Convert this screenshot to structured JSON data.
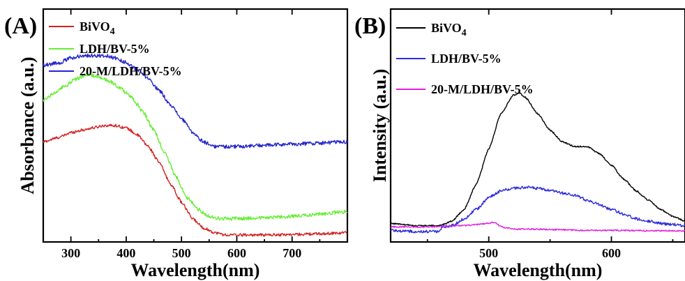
{
  "chart_data": [
    {
      "panel": "(A)",
      "type": "line",
      "xlabel": "Wavelength(nm)",
      "ylabel": "Absorbance (a.u.)",
      "xlim": [
        250,
        800
      ],
      "ylim": [
        0,
        1
      ],
      "xticks": [
        300,
        400,
        500,
        600,
        700
      ],
      "yticks_visible": false,
      "legend_position": "top-left",
      "series": [
        {
          "name": "BiVO",
          "name_sub": "4",
          "color": "#d42020",
          "noise": 0.006,
          "x": [
            250,
            280,
            300,
            320,
            340,
            360,
            380,
            400,
            420,
            440,
            460,
            480,
            500,
            520,
            540,
            560,
            580,
            600,
            650,
            700,
            750,
            800
          ],
          "y": [
            0.43,
            0.45,
            0.47,
            0.48,
            0.49,
            0.5,
            0.5,
            0.49,
            0.46,
            0.41,
            0.34,
            0.25,
            0.17,
            0.1,
            0.06,
            0.04,
            0.03,
            0.03,
            0.03,
            0.032,
            0.035,
            0.04
          ]
        },
        {
          "name": "LDH/BV-5%",
          "color": "#66ee33",
          "noise": 0.008,
          "x": [
            250,
            270,
            290,
            310,
            330,
            350,
            370,
            390,
            410,
            430,
            450,
            470,
            490,
            510,
            530,
            550,
            570,
            600,
            650,
            700,
            750,
            800
          ],
          "y": [
            0.61,
            0.64,
            0.67,
            0.7,
            0.72,
            0.71,
            0.69,
            0.66,
            0.62,
            0.56,
            0.48,
            0.38,
            0.28,
            0.19,
            0.14,
            0.11,
            0.1,
            0.1,
            0.105,
            0.11,
            0.12,
            0.13
          ]
        },
        {
          "name": "20-M/LDH/BV-5%",
          "color": "#2424cc",
          "noise": 0.008,
          "x": [
            250,
            280,
            300,
            320,
            340,
            360,
            380,
            400,
            420,
            440,
            460,
            480,
            500,
            520,
            540,
            560,
            580,
            600,
            650,
            700,
            750,
            800
          ],
          "y": [
            0.76,
            0.77,
            0.79,
            0.8,
            0.8,
            0.8,
            0.79,
            0.77,
            0.74,
            0.7,
            0.65,
            0.59,
            0.53,
            0.47,
            0.43,
            0.41,
            0.41,
            0.41,
            0.415,
            0.42,
            0.425,
            0.43
          ]
        }
      ]
    },
    {
      "panel": "(B)",
      "type": "line",
      "xlabel": "Wavelength(nm)",
      "ylabel": "Intensity (a.u.)",
      "xlim": [
        420,
        660
      ],
      "ylim": [
        0,
        1
      ],
      "xticks": [
        500,
        600
      ],
      "yticks_visible": false,
      "legend_position": "top-left",
      "series": [
        {
          "name": "BiVO",
          "name_sub": "4",
          "color": "#000000",
          "noise": 0.003,
          "x": [
            420,
            440,
            460,
            470,
            480,
            490,
            500,
            510,
            520,
            525,
            530,
            540,
            550,
            560,
            570,
            580,
            590,
            600,
            610,
            620,
            630,
            640,
            650,
            660
          ],
          "y": [
            0.08,
            0.07,
            0.07,
            0.09,
            0.14,
            0.25,
            0.4,
            0.55,
            0.63,
            0.64,
            0.62,
            0.55,
            0.48,
            0.43,
            0.41,
            0.41,
            0.38,
            0.33,
            0.27,
            0.22,
            0.18,
            0.14,
            0.11,
            0.09
          ]
        },
        {
          "name": "LDH/BV-5%",
          "color": "#2c2cdc",
          "noise": 0.006,
          "x": [
            420,
            440,
            460,
            462,
            470,
            480,
            490,
            500,
            510,
            520,
            530,
            540,
            550,
            560,
            570,
            580,
            590,
            600,
            610,
            620,
            630,
            640,
            650,
            660
          ],
          "y": [
            0.05,
            0.045,
            0.045,
            0.065,
            0.07,
            0.1,
            0.14,
            0.19,
            0.22,
            0.23,
            0.235,
            0.23,
            0.22,
            0.21,
            0.2,
            0.18,
            0.16,
            0.14,
            0.12,
            0.1,
            0.09,
            0.08,
            0.075,
            0.07
          ]
        },
        {
          "name": "20-M/LDH/BV-5%",
          "color": "#e020e0",
          "noise": 0.003,
          "x": [
            420,
            450,
            480,
            490,
            500,
            505,
            510,
            520,
            540,
            560,
            580,
            600,
            630,
            660
          ],
          "y": [
            0.065,
            0.065,
            0.07,
            0.075,
            0.08,
            0.085,
            0.065,
            0.055,
            0.055,
            0.052,
            0.05,
            0.05,
            0.048,
            0.048
          ]
        }
      ]
    }
  ]
}
